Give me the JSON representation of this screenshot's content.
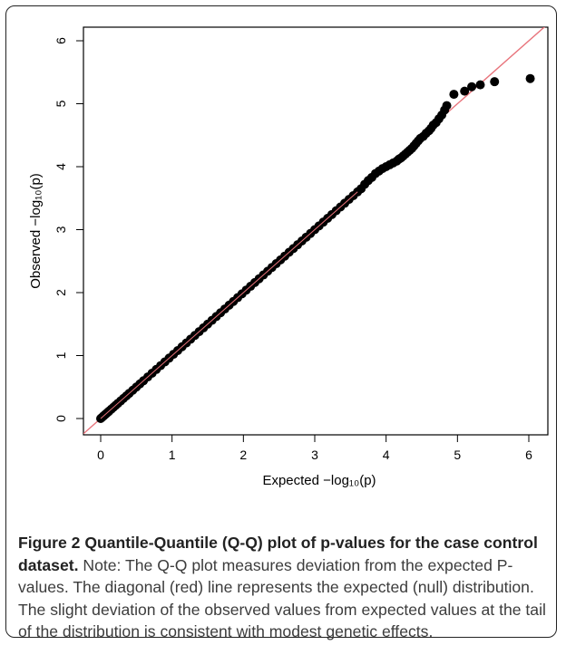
{
  "chart_data": {
    "type": "scatter",
    "xlabel": "Expected",
    "ylabel": "Observed",
    "axis_expr": "−log₁₀(p)",
    "xlim": [
      0,
      6
    ],
    "ylim": [
      0,
      6
    ],
    "x_ticks": [
      "0",
      "1",
      "2",
      "3",
      "4",
      "5",
      "6"
    ],
    "y_ticks": [
      "0",
      "1",
      "2",
      "3",
      "4",
      "5",
      "6"
    ],
    "reference_line": {
      "from": [
        0,
        0
      ],
      "to": [
        6,
        6
      ],
      "color": "#e8737b"
    },
    "point_color": "#000000",
    "points_x": [
      0.0,
      0.02,
      0.04,
      0.06,
      0.08,
      0.1,
      0.12,
      0.15,
      0.18,
      0.21,
      0.24,
      0.28,
      0.32,
      0.36,
      0.4,
      0.45,
      0.5,
      0.55,
      0.6,
      0.66,
      0.72,
      0.78,
      0.84,
      0.9,
      0.96,
      1.02,
      1.08,
      1.14,
      1.2,
      1.26,
      1.32,
      1.38,
      1.44,
      1.5,
      1.56,
      1.62,
      1.68,
      1.74,
      1.8,
      1.86,
      1.92,
      1.98,
      2.04,
      2.1,
      2.16,
      2.22,
      2.28,
      2.34,
      2.4,
      2.46,
      2.52,
      2.58,
      2.64,
      2.7,
      2.76,
      2.82,
      2.88,
      2.94,
      3.0,
      3.06,
      3.12,
      3.18,
      3.24,
      3.3,
      3.36,
      3.42,
      3.48,
      3.54,
      3.6,
      3.65,
      3.7,
      3.75,
      3.8,
      3.85,
      3.9,
      3.95,
      4.0,
      4.05,
      4.1,
      4.15,
      4.18,
      4.21,
      4.24,
      4.27,
      4.3,
      4.33,
      4.36,
      4.39,
      4.42,
      4.45,
      4.48,
      4.52,
      4.56,
      4.6,
      4.63,
      4.66,
      4.7,
      4.74,
      4.78,
      4.82,
      4.85,
      4.95,
      5.1,
      5.2,
      5.32,
      5.52,
      6.02
    ],
    "points_y": [
      0.0,
      0.02,
      0.04,
      0.06,
      0.08,
      0.1,
      0.12,
      0.15,
      0.18,
      0.21,
      0.24,
      0.28,
      0.32,
      0.36,
      0.4,
      0.45,
      0.5,
      0.55,
      0.6,
      0.66,
      0.72,
      0.78,
      0.84,
      0.9,
      0.96,
      1.02,
      1.08,
      1.14,
      1.2,
      1.26,
      1.32,
      1.38,
      1.44,
      1.5,
      1.56,
      1.62,
      1.68,
      1.74,
      1.8,
      1.86,
      1.92,
      1.98,
      2.04,
      2.1,
      2.16,
      2.22,
      2.28,
      2.34,
      2.4,
      2.46,
      2.52,
      2.58,
      2.64,
      2.7,
      2.76,
      2.82,
      2.88,
      2.94,
      3.0,
      3.06,
      3.12,
      3.18,
      3.24,
      3.3,
      3.36,
      3.42,
      3.48,
      3.54,
      3.6,
      3.65,
      3.72,
      3.78,
      3.83,
      3.89,
      3.93,
      3.97,
      4.0,
      4.03,
      4.06,
      4.09,
      4.12,
      4.14,
      4.17,
      4.2,
      4.23,
      4.26,
      4.29,
      4.33,
      4.37,
      4.41,
      4.45,
      4.48,
      4.53,
      4.57,
      4.61,
      4.66,
      4.7,
      4.76,
      4.82,
      4.9,
      4.97,
      5.15,
      5.2,
      5.27,
      5.3,
      5.35,
      5.4
    ]
  },
  "caption": {
    "label": "Figure 2",
    "title": "Quantile-Quantile (Q-Q) plot of p-values for the case control dataset.",
    "body": "Note: The Q-Q plot measures deviation from the expected P-values. The diagonal (red) line represents the expected (null) distribution. The slight deviation of the observed values from expected values at the tail of the distribution is consistent with modest genetic effects."
  }
}
